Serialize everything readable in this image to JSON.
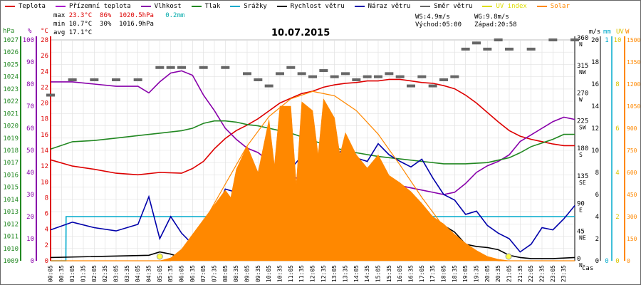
{
  "legend": [
    {
      "label": "Teplota",
      "color": "#dd0000"
    },
    {
      "label": "Přízemní teplota",
      "color": "#aa00cc"
    },
    {
      "label": "Vlhkost",
      "color": "#8800aa"
    },
    {
      "label": "Tlak",
      "color": "#228822"
    },
    {
      "label": "Srážky",
      "color": "#00aacc"
    },
    {
      "label": "Rychlost větru",
      "color": "#000000"
    },
    {
      "label": "Náraz větru",
      "color": "#0000aa"
    },
    {
      "label": "Směr větru",
      "color": "#666666"
    },
    {
      "label": "UV index",
      "color": "#dddd00"
    },
    {
      "label": "Solar",
      "color": "#ff8800"
    }
  ],
  "stats": {
    "max_label": "max",
    "max_temp": "23.3°C",
    "max_hum": "86%",
    "max_press": "1020.5hPa",
    "rain": "0.2mm",
    "min_label": "min",
    "min_temp": "10.7°C",
    "min_hum": "30%",
    "min_press": "1016.9hPa",
    "avg_label": "avg",
    "avg_temp": "17.1°C",
    "ws": "WS:4.9m/s",
    "wg": "WG:9.8m/s",
    "sunrise": "Východ:05:00",
    "sunset": "Západ:20:58"
  },
  "chart_data": {
    "type": "line",
    "title": "10.07.2015",
    "xlabel": "čas",
    "time_range_hours": [
      0,
      24
    ],
    "x_ticks": [
      "00:05",
      "00:35",
      "01:05",
      "01:35",
      "02:05",
      "02:35",
      "03:05",
      "03:35",
      "04:05",
      "04:35",
      "05:05",
      "05:35",
      "06:05",
      "06:35",
      "07:05",
      "07:35",
      "08:05",
      "08:35",
      "09:05",
      "09:35",
      "10:05",
      "10:35",
      "11:05",
      "11:35",
      "12:05",
      "12:35",
      "13:05",
      "13:35",
      "14:05",
      "14:35",
      "15:05",
      "15:35",
      "16:05",
      "16:35",
      "17:05",
      "17:35",
      "18:05",
      "18:35",
      "19:05",
      "19:35",
      "20:05",
      "20:35",
      "21:05",
      "21:35",
      "22:05",
      "22:35",
      "23:05",
      "23:35"
    ],
    "axes": {
      "pressure": {
        "label": "hPa",
        "color": "#228822",
        "range": [
          1009,
          1027
        ],
        "ticks": [
          "1009",
          "1010",
          "1011",
          "1012",
          "1013",
          "1014",
          "1015",
          "1016",
          "1017",
          "1018",
          "1019",
          "1020",
          "1021",
          "1022",
          "1023",
          "1024",
          "1025",
          "1026",
          "1027"
        ]
      },
      "humidity": {
        "label": "%",
        "color": "#8800aa",
        "range": [
          0,
          100
        ],
        "ticks": [
          "0",
          "10",
          "20",
          "30",
          "40",
          "50",
          "60",
          "70",
          "80",
          "90",
          "100"
        ]
      },
      "temperature": {
        "label": "°C",
        "color": "#dd0000",
        "range": [
          0,
          28
        ],
        "ticks": [
          "0",
          "2",
          "4",
          "6",
          "8",
          "10",
          "12",
          "14",
          "16",
          "18",
          "20",
          "22",
          "24",
          "26",
          "28"
        ]
      },
      "direction": {
        "label": "",
        "color": "#000000",
        "range": [
          0,
          360
        ],
        "ticks": [
          {
            "v": "0",
            "d": "N"
          },
          {
            "v": "45",
            "d": "NE"
          },
          {
            "v": "90",
            "d": "E"
          },
          {
            "v": "135",
            "d": "SE"
          },
          {
            "v": "180",
            "d": "S"
          },
          {
            "v": "225",
            "d": "SW"
          },
          {
            "v": "270",
            "d": "W"
          },
          {
            "v": "315",
            "d": "NW"
          },
          {
            "v": "360",
            "d": "N"
          }
        ]
      },
      "wind": {
        "label": "m/s",
        "color": "#000000",
        "range": [
          0,
          20
        ],
        "ticks": [
          "0",
          "2",
          "4",
          "6",
          "8",
          "10",
          "12",
          "14",
          "16",
          "18",
          "20"
        ]
      },
      "rain": {
        "label": "mm",
        "color": "#00aacc",
        "range": [
          0,
          1
        ],
        "ticks": [
          "0",
          "1"
        ]
      },
      "uv": {
        "label": "UV",
        "color": "#dddd00",
        "range": [
          0,
          10
        ],
        "ticks": [
          "0",
          "2",
          "4",
          "6",
          "8",
          "10"
        ]
      },
      "solar": {
        "label": "W",
        "color": "#ff8800",
        "range": [
          0,
          1500
        ],
        "ticks": [
          "0",
          "150",
          "300",
          "450",
          "600",
          "750",
          "900",
          "1050",
          "1200",
          "1350",
          "1500"
        ]
      }
    },
    "series": [
      {
        "name": "Teplota",
        "axis": "temperature",
        "color": "#dd0000",
        "t": [
          0,
          1,
          2,
          3,
          4,
          5,
          6,
          6.5,
          7,
          7.5,
          8,
          8.5,
          9,
          9.5,
          10,
          10.5,
          11,
          11.5,
          12,
          12.5,
          13,
          13.5,
          14,
          14.5,
          15,
          15.5,
          16,
          16.5,
          17,
          17.5,
          18,
          18.5,
          19,
          19.5,
          20,
          20.5,
          21,
          21.5,
          22,
          22.5,
          23,
          23.5,
          24
        ],
        "v": [
          12.8,
          12.0,
          11.6,
          11.1,
          10.9,
          11.2,
          11.1,
          11.7,
          12.6,
          14.2,
          15.5,
          16.5,
          17.2,
          18.0,
          19.0,
          20.0,
          20.6,
          21.2,
          21.5,
          22.0,
          22.3,
          22.5,
          22.6,
          22.8,
          22.8,
          23.0,
          23.0,
          22.8,
          22.6,
          22.5,
          22.2,
          21.8,
          21.0,
          20.0,
          18.8,
          17.6,
          16.5,
          15.8,
          15.4,
          15.1,
          14.8,
          14.6,
          14.6
        ]
      },
      {
        "name": "Vlhkost",
        "axis": "humidity",
        "color": "#8800aa",
        "t": [
          0,
          1,
          2,
          3,
          4,
          4.5,
          5,
          5.5,
          6,
          6.5,
          7,
          7.5,
          8,
          8.5,
          9,
          9.5,
          10,
          10.5,
          11,
          11.5,
          12,
          12.5,
          13,
          14,
          15,
          16,
          16.5,
          17,
          17.5,
          18,
          18.5,
          19,
          19.5,
          20,
          20.5,
          21,
          21.5,
          22,
          22.5,
          23,
          23.5,
          24
        ],
        "v": [
          81,
          81,
          80,
          79,
          79,
          76,
          81,
          85,
          86,
          84,
          75,
          68,
          60,
          55,
          51,
          49,
          45,
          41,
          38,
          37,
          36,
          35,
          36,
          35,
          35,
          34,
          33,
          32,
          31,
          30,
          31,
          35,
          40,
          43,
          45,
          48,
          54,
          57,
          60,
          63,
          65,
          64
        ]
      },
      {
        "name": "Tlak",
        "axis": "pressure",
        "color": "#228822",
        "t": [
          0,
          1,
          2,
          3,
          4,
          5,
          6,
          6.5,
          7,
          7.5,
          8,
          8.5,
          9,
          9.5,
          10,
          11,
          12,
          13,
          14,
          15,
          16,
          17,
          18,
          19,
          20,
          21,
          21.5,
          22,
          22.5,
          23,
          23.5,
          24
        ],
        "v": [
          1018.1,
          1018.7,
          1018.8,
          1019.0,
          1019.2,
          1019.4,
          1019.6,
          1019.8,
          1020.2,
          1020.4,
          1020.4,
          1020.3,
          1020.1,
          1020.0,
          1019.8,
          1019.4,
          1018.8,
          1018.2,
          1017.8,
          1017.5,
          1017.3,
          1017.1,
          1016.9,
          1016.9,
          1017.0,
          1017.4,
          1017.8,
          1018.3,
          1018.6,
          1018.9,
          1019.3,
          1019.3
        ]
      },
      {
        "name": "Srážky",
        "axis": "rain",
        "color": "#00aacc",
        "t": [
          0,
          0.7,
          0.71,
          24
        ],
        "v": [
          0,
          0,
          0.2,
          0.2
        ]
      },
      {
        "name": "Rychlost větru",
        "axis": "wind",
        "color": "#000000",
        "t": [
          0,
          4.5,
          5,
          5.5,
          6,
          7,
          7.5,
          8,
          8.5,
          9,
          9.5,
          10,
          10.5,
          11,
          11.5,
          12,
          12.5,
          13,
          13.5,
          14,
          14.5,
          15,
          15.5,
          16,
          16.5,
          17,
          17.5,
          18,
          18.5,
          19,
          19.5,
          20,
          20.5,
          21,
          21.5,
          22,
          23,
          24
        ],
        "v": [
          0.3,
          0.5,
          0.8,
          0.6,
          0.3,
          0.5,
          1.5,
          2.0,
          2.2,
          2.4,
          3.8,
          4.2,
          4.6,
          4.2,
          4.8,
          5.0,
          4.6,
          4.0,
          5.0,
          4.8,
          4.2,
          4.6,
          5.2,
          4.4,
          3.8,
          3.6,
          2.8,
          3.2,
          2.6,
          1.5,
          1.3,
          1.2,
          1.0,
          0.5,
          0.3,
          0.2,
          0.2,
          0.3
        ]
      },
      {
        "name": "Náraz větru",
        "axis": "wind",
        "color": "#0000aa",
        "t": [
          0,
          1,
          2,
          3,
          4,
          4.5,
          5,
          5.5,
          6,
          6.5,
          7,
          7.5,
          8,
          8.5,
          9,
          9.5,
          10,
          10.5,
          11,
          11.5,
          12,
          12.5,
          13,
          13.5,
          14,
          14.5,
          15,
          15.5,
          16,
          16.5,
          17,
          17.5,
          18,
          18.5,
          19,
          19.5,
          20,
          20.5,
          21,
          21.5,
          22,
          22.5,
          23,
          23.5,
          24
        ],
        "v": [
          2.8,
          3.5,
          3.0,
          2.7,
          3.3,
          5.8,
          2.0,
          4.0,
          2.5,
          1.5,
          2.0,
          4.0,
          6.5,
          6.2,
          5.5,
          8.0,
          7.2,
          8.8,
          8.3,
          9.5,
          8.5,
          10.0,
          9.5,
          10.2,
          9.3,
          9.0,
          10.6,
          9.6,
          9.0,
          8.5,
          9.2,
          7.5,
          6.0,
          5.5,
          4.2,
          4.5,
          3.2,
          2.5,
          2.0,
          0.8,
          1.5,
          3.0,
          2.8,
          3.8,
          5.0
        ]
      },
      {
        "name": "Směr větru",
        "axis": "direction",
        "color": "#666666",
        "t": [
          0,
          1,
          2,
          3,
          4,
          5,
          5.5,
          6,
          7,
          8,
          9,
          9.5,
          10,
          10.5,
          11,
          11.5,
          12,
          12.5,
          13,
          13.5,
          14,
          14.5,
          15,
          15.5,
          16,
          16.5,
          17,
          17.5,
          18,
          18.5,
          19,
          19.5,
          20,
          20.5,
          21,
          22,
          23,
          24
        ],
        "v": [
          270,
          295,
          295,
          295,
          295,
          315,
          315,
          315,
          315,
          315,
          305,
          295,
          285,
          305,
          315,
          305,
          300,
          310,
          300,
          305,
          295,
          300,
          300,
          305,
          300,
          285,
          300,
          285,
          295,
          300,
          345,
          355,
          345,
          360,
          345,
          345,
          360,
          360
        ]
      },
      {
        "name": "Solar",
        "axis": "solar",
        "color": "#ff8800",
        "type": "area",
        "t": [
          0,
          5,
          5.5,
          6,
          6.5,
          7,
          7.5,
          8,
          8.25,
          8.5,
          9,
          9.5,
          10,
          10.25,
          10.5,
          11,
          11.25,
          11.5,
          12,
          12.25,
          12.5,
          13,
          13.25,
          13.5,
          14,
          14.5,
          15,
          15.5,
          16,
          16.5,
          17,
          17.5,
          18,
          18.5,
          19,
          19.5,
          20,
          20.5,
          21,
          24
        ],
        "v": [
          0,
          0,
          20,
          80,
          180,
          280,
          380,
          480,
          430,
          620,
          780,
          600,
          960,
          650,
          1050,
          1050,
          520,
          1080,
          1020,
          720,
          1100,
          970,
          720,
          870,
          720,
          630,
          720,
          580,
          530,
          470,
          390,
          300,
          250,
          180,
          120,
          70,
          30,
          10,
          0,
          0
        ]
      },
      {
        "name": "Solar theoretical max",
        "axis": "solar",
        "color": "#ff8800",
        "type": "line",
        "t": [
          0,
          5.5,
          6,
          7,
          8,
          9,
          10,
          11,
          12,
          13,
          14,
          15,
          16,
          17,
          18,
          19,
          20,
          20.5,
          24
        ],
        "v": [
          0,
          0,
          60,
          260,
          520,
          780,
          980,
          1100,
          1150,
          1120,
          1020,
          860,
          650,
          430,
          230,
          80,
          10,
          0,
          0
        ]
      }
    ]
  }
}
